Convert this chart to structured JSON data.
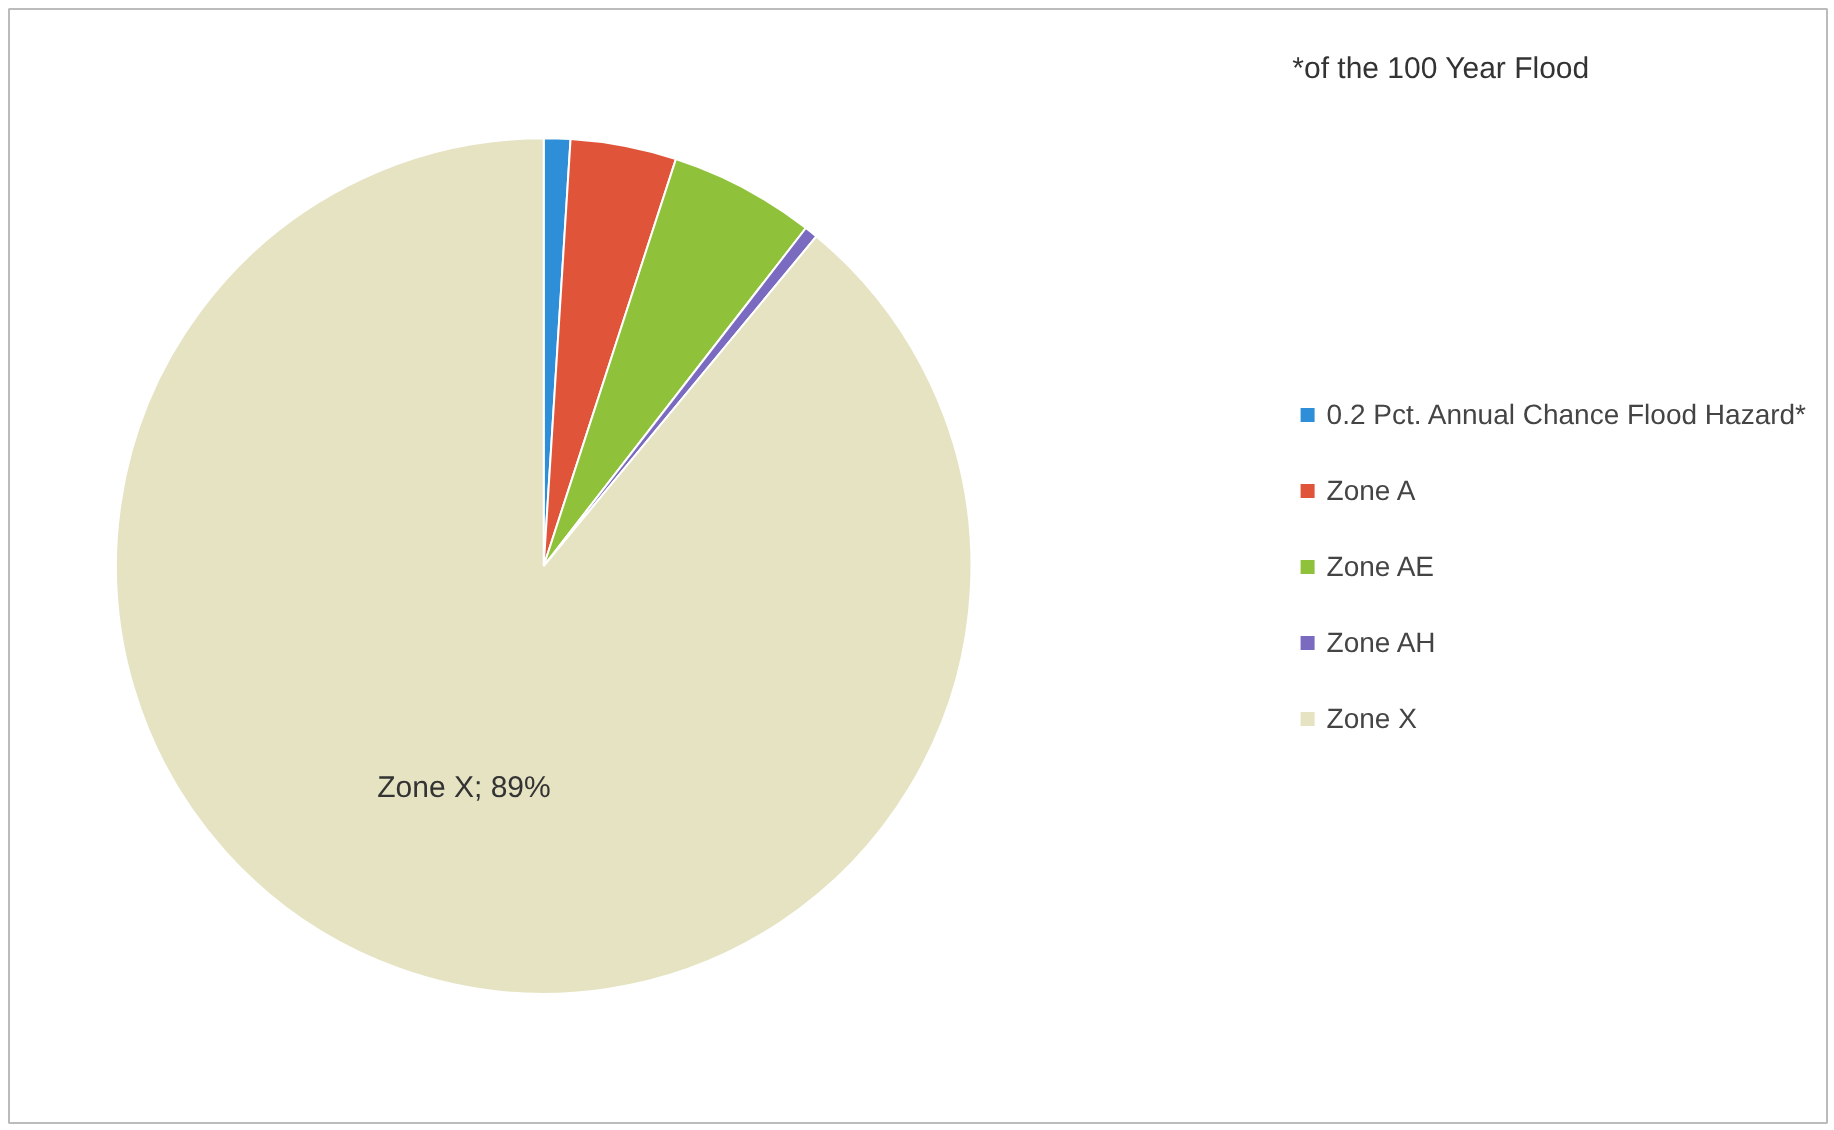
{
  "chart_data": {
    "type": "pie",
    "categories": [
      "0.2 Pct. Annual Chance Flood Hazard*",
      "Zone A",
      "Zone AE",
      "Zone AH",
      "Zone X"
    ],
    "values": [
      1,
      4,
      5.5,
      0.5,
      89
    ],
    "colors": [
      "#2e8fd8",
      "#e0553a",
      "#8fc23a",
      "#7b6bc0",
      "#e6e3c3"
    ],
    "value_labels": [
      null,
      null,
      null,
      null,
      "Zone X; 89%"
    ],
    "annotations": [
      "*of the 100 Year Flood"
    ],
    "legend": "right"
  }
}
